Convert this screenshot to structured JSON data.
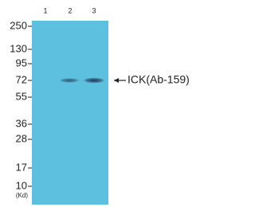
{
  "lanes": [
    "1",
    "2",
    "3"
  ],
  "markers": [
    "250",
    "130",
    "95",
    "72",
    "55",
    "36",
    "28",
    "17",
    "10"
  ],
  "unit": "(Kd)",
  "target": "ICK(Ab-159)"
}
